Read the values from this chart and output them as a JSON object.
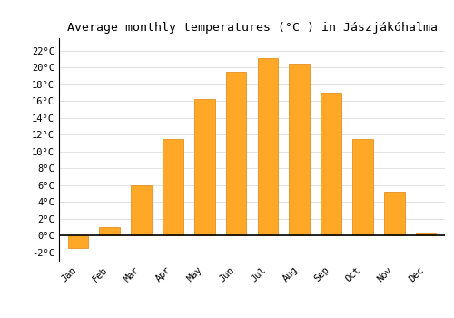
{
  "months": [
    "Jan",
    "Feb",
    "Mar",
    "Apr",
    "May",
    "Jun",
    "Jul",
    "Aug",
    "Sep",
    "Oct",
    "Nov",
    "Dec"
  ],
  "values": [
    -1.5,
    1.0,
    6.0,
    11.5,
    16.3,
    19.5,
    21.1,
    20.5,
    17.0,
    11.5,
    5.2,
    0.3
  ],
  "bar_color": "#FFA726",
  "bar_edge_color": "#E69020",
  "title": "Average monthly temperatures (°C ) in Jászjákóhalma",
  "ylabel_ticks": [
    "-2°C",
    "0°C",
    "2°C",
    "4°C",
    "6°C",
    "8°C",
    "10°C",
    "12°C",
    "14°C",
    "16°C",
    "18°C",
    "20°C",
    "22°C"
  ],
  "ytick_values": [
    -2,
    0,
    2,
    4,
    6,
    8,
    10,
    12,
    14,
    16,
    18,
    20,
    22
  ],
  "ylim": [
    -3.0,
    23.5
  ],
  "background_color": "#ffffff",
  "grid_color": "#dddddd",
  "title_fontsize": 9.5,
  "tick_fontsize": 7.5,
  "zero_line_color": "#000000",
  "spine_color": "#000000"
}
